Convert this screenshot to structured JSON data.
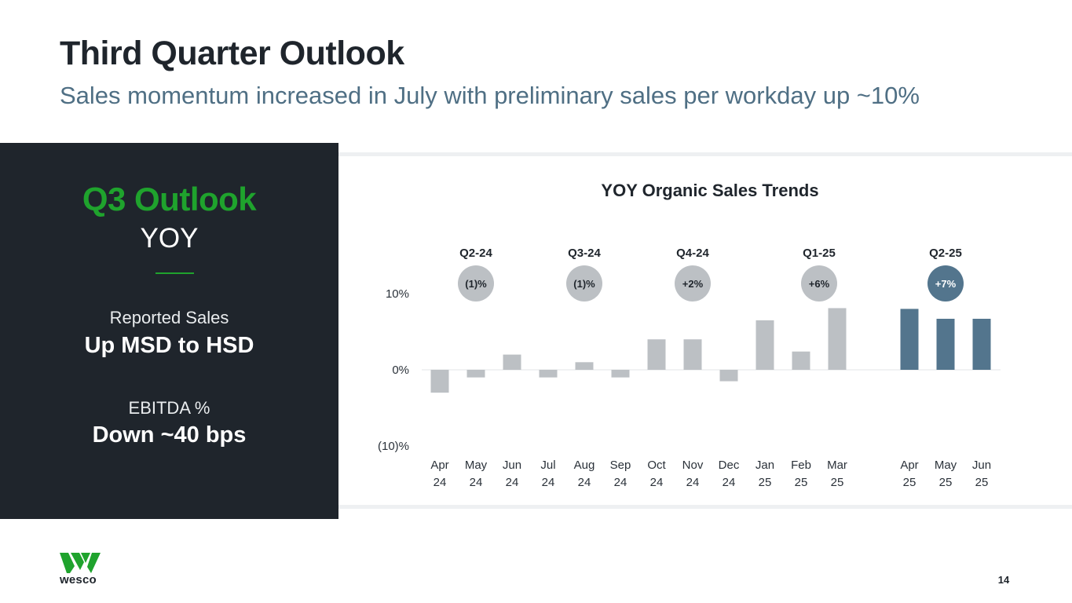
{
  "slide": {
    "title": "Third Quarter Outlook",
    "subtitle": "Sales momentum increased in July with preliminary sales per workday up ~10%",
    "page_number": "14"
  },
  "outlook": {
    "title": "Q3 Outlook",
    "subtitle": "YOY",
    "items": [
      {
        "label": "Reported Sales",
        "value": "Up MSD to HSD"
      },
      {
        "label": "EBITDA %",
        "value": "Down ~40 bps"
      }
    ]
  },
  "logo": {
    "text": "wesco"
  },
  "colors": {
    "brand_green": "#1fa32d",
    "dark_panel": "#1f252c",
    "bar_gray": "#bcc0c4",
    "bar_blue": "#53758d",
    "bubble_gray": "#bcc0c4",
    "bubble_blue": "#53758d",
    "subtitle_blue": "#4f6f84"
  },
  "chart_data": {
    "type": "bar",
    "title": "YOY Organic Sales Trends",
    "y_ticks": [
      {
        "value": 10,
        "label": "10%"
      },
      {
        "value": 0,
        "label": "0%"
      },
      {
        "value": -10,
        "label": "(10)%"
      }
    ],
    "ylim": [
      -10,
      10
    ],
    "categories": [
      {
        "month": "Apr",
        "year": "24"
      },
      {
        "month": "May",
        "year": "24"
      },
      {
        "month": "Jun",
        "year": "24"
      },
      {
        "month": "Jul",
        "year": "24"
      },
      {
        "month": "Aug",
        "year": "24"
      },
      {
        "month": "Sep",
        "year": "24"
      },
      {
        "month": "Oct",
        "year": "24"
      },
      {
        "month": "Nov",
        "year": "24"
      },
      {
        "month": "Dec",
        "year": "24"
      },
      {
        "month": "Jan",
        "year": "25"
      },
      {
        "month": "Feb",
        "year": "25"
      },
      {
        "month": "Mar",
        "year": "25"
      },
      {
        "month": "Apr",
        "year": "25"
      },
      {
        "month": "May",
        "year": "25"
      },
      {
        "month": "Jun",
        "year": "25"
      }
    ],
    "values": [
      -3.0,
      -1.0,
      2.0,
      -1.0,
      1.0,
      -1.0,
      4.0,
      4.0,
      -1.5,
      6.5,
      2.4,
      8.1,
      8.0,
      6.7,
      6.7
    ],
    "highlight_from_index": 12,
    "quarters": [
      {
        "label": "Q2-24",
        "value": "(1)%",
        "center_index": 1,
        "highlight": false
      },
      {
        "label": "Q3-24",
        "value": "(1)%",
        "center_index": 4,
        "highlight": false
      },
      {
        "label": "Q4-24",
        "value": "+2%",
        "center_index": 7,
        "highlight": false
      },
      {
        "label": "Q1-25",
        "value": "+6%",
        "center_index": 10.5,
        "highlight": false
      },
      {
        "label": "Q2-25",
        "value": "+7%",
        "center_index": 13,
        "highlight": true
      }
    ]
  }
}
